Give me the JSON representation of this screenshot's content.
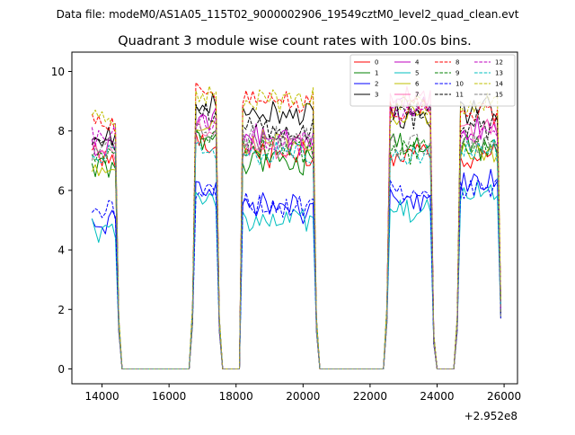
{
  "suptitle": "Data file: modeM0/AS1A05_115T02_9000002906_19549cztM0_level2_quad_clean.evt",
  "chart_data": {
    "type": "line",
    "title": "Quadrant 3 module wise count rates with 100.0s bins.",
    "xlabel": "",
    "ylabel": "",
    "x_offset_text": "+2.952e8",
    "xlim": [
      13100,
      26400
    ],
    "ylim": [
      -0.5,
      10.65
    ],
    "x_ticks": [
      14000,
      16000,
      18000,
      20000,
      22000,
      24000,
      26000
    ],
    "x_tick_labels": [
      "14000",
      "16000",
      "18000",
      "20000",
      "22000",
      "24000",
      "26000"
    ],
    "y_ticks": [
      0,
      2,
      4,
      6,
      8,
      10
    ],
    "y_tick_labels": [
      "0",
      "2",
      "4",
      "6",
      "8",
      "10"
    ],
    "grid": false,
    "legend_position": "top-right",
    "legend_columns": 4,
    "on_segments": [
      [
        13700,
        14400
      ],
      [
        16800,
        17400
      ],
      [
        18200,
        20300
      ],
      [
        22600,
        23800
      ],
      [
        24700,
        25850
      ]
    ],
    "transition_points": [
      [
        14500,
        1.5
      ],
      [
        16700,
        1.8
      ],
      [
        17500,
        1.5
      ],
      [
        18150,
        2.0
      ],
      [
        20400,
        1.5
      ],
      [
        22500,
        1.8
      ],
      [
        23900,
        1.0
      ],
      [
        24600,
        1.5
      ],
      [
        25900,
        2.0
      ]
    ],
    "x_start": 13700,
    "x_end": 25900,
    "x_step": 100,
    "series": [
      {
        "name": "0",
        "color": "#ff0000",
        "dash": "solid",
        "base": [
          7.1,
          7.6,
          7.2,
          7.2,
          7.1
        ]
      },
      {
        "name": "1",
        "color": "#008000",
        "dash": "solid",
        "base": [
          6.8,
          7.7,
          7.0,
          7.5,
          7.4
        ]
      },
      {
        "name": "2",
        "color": "#0000ff",
        "dash": "solid",
        "base": [
          5.0,
          6.1,
          5.4,
          5.6,
          6.3
        ]
      },
      {
        "name": "3",
        "color": "#000000",
        "dash": "solid",
        "base": [
          7.8,
          8.9,
          8.6,
          8.5,
          8.7
        ]
      },
      {
        "name": "4",
        "color": "#bf00bf",
        "dash": "solid",
        "base": [
          7.5,
          8.5,
          7.8,
          8.8,
          8.1
        ]
      },
      {
        "name": "5",
        "color": "#00bfbf",
        "dash": "solid",
        "base": [
          4.7,
          5.7,
          5.1,
          5.4,
          5.8
        ]
      },
      {
        "name": "6",
        "color": "#bfbf00",
        "dash": "solid",
        "base": [
          6.8,
          8.0,
          7.6,
          8.5,
          7.3
        ]
      },
      {
        "name": "7",
        "color": "#ff69b4",
        "dash": "solid",
        "base": [
          7.3,
          8.2,
          7.5,
          9.1,
          8.0
        ]
      },
      {
        "name": "8",
        "color": "#ff0000",
        "dash": "dashed",
        "base": [
          8.3,
          9.3,
          9.0,
          8.8,
          8.6
        ]
      },
      {
        "name": "9",
        "color": "#008000",
        "dash": "dashed",
        "base": [
          7.0,
          7.9,
          7.4,
          7.3,
          7.5
        ]
      },
      {
        "name": "10",
        "color": "#0000ff",
        "dash": "dashed",
        "base": [
          5.4,
          6.0,
          5.5,
          6.1,
          6.1
        ]
      },
      {
        "name": "11",
        "color": "#000000",
        "dash": "dashed",
        "base": [
          7.6,
          8.5,
          8.1,
          8.5,
          8.2
        ]
      },
      {
        "name": "12",
        "color": "#bf00bf",
        "dash": "dashed",
        "base": [
          7.9,
          8.3,
          7.6,
          8.6,
          7.9
        ]
      },
      {
        "name": "13",
        "color": "#00bfbf",
        "dash": "dashed",
        "base": [
          7.2,
          7.5,
          7.2,
          7.2,
          7.4
        ]
      },
      {
        "name": "14",
        "color": "#bfbf00",
        "dash": "dashed",
        "base": [
          8.4,
          9.2,
          9.0,
          8.9,
          8.9
        ]
      },
      {
        "name": "15",
        "color": "#808080",
        "dash": "dashed",
        "base": [
          7.4,
          8.1,
          7.7,
          7.5,
          7.6
        ]
      }
    ]
  }
}
